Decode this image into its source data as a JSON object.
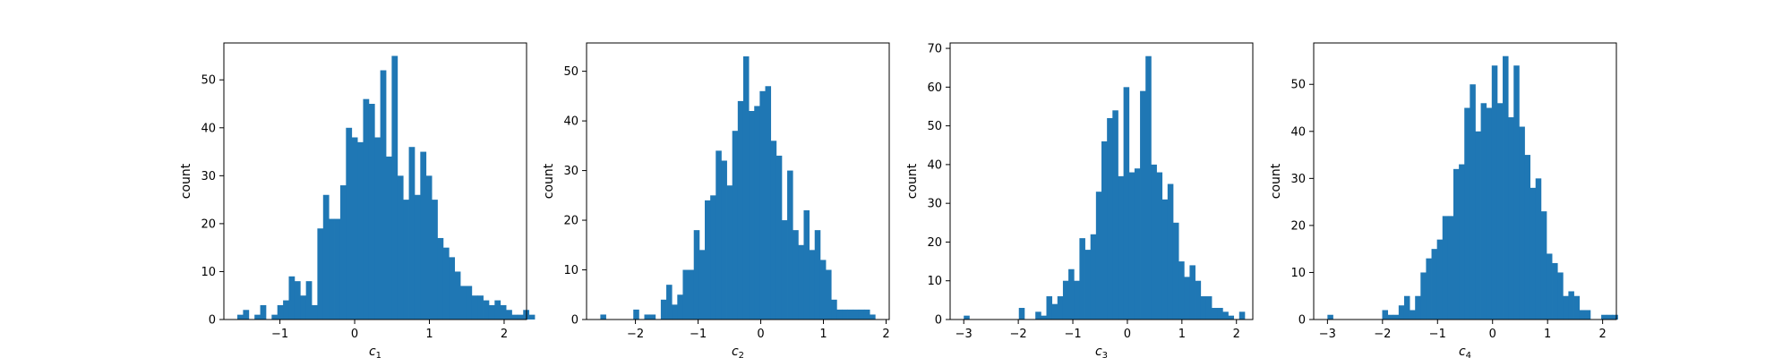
{
  "chart_data": [
    {
      "type": "bar",
      "xlabel": "c",
      "xlabel_sub": "1",
      "ylabel": "count",
      "xlim": [
        -1.75,
        2.3
      ],
      "ylim": [
        0,
        57.7
      ],
      "xticks": [
        -1,
        0,
        1,
        2
      ],
      "xtick_labels": [
        "−1",
        "0",
        "1",
        "2"
      ],
      "yticks": [
        0,
        10,
        20,
        30,
        40,
        50
      ],
      "ytick_labels": [
        "0",
        "10",
        "20",
        "30",
        "40",
        "50"
      ],
      "bin_start": -1.57,
      "bin_width": 0.0765,
      "counts": [
        1,
        2,
        0,
        1,
        3,
        0,
        1,
        3,
        4,
        9,
        8,
        5,
        8,
        3,
        19,
        26,
        21,
        21,
        28,
        40,
        38,
        37,
        46,
        45,
        38,
        52,
        34,
        55,
        30,
        25,
        36,
        26,
        35,
        30,
        25,
        17,
        15,
        13,
        10,
        7,
        7,
        5,
        5,
        4,
        3,
        4,
        3,
        2,
        1,
        1,
        2,
        1
      ]
    },
    {
      "type": "bar",
      "xlabel": "c",
      "xlabel_sub": "2",
      "ylabel": "count",
      "xlim": [
        -2.78,
        2.05
      ],
      "ylim": [
        0,
        55.7
      ],
      "xticks": [
        -2,
        -1,
        0,
        1,
        2
      ],
      "xtick_labels": [
        "−2",
        "−1",
        "0",
        "1",
        "2"
      ],
      "yticks": [
        0,
        10,
        20,
        30,
        40,
        50
      ],
      "ytick_labels": [
        "0",
        "10",
        "20",
        "30",
        "40",
        "50"
      ],
      "bin_start": -2.56,
      "bin_width": 0.0877,
      "counts": [
        1,
        0,
        0,
        0,
        0,
        0,
        2,
        0,
        1,
        1,
        0,
        4,
        7,
        3,
        5,
        10,
        10,
        18,
        14,
        24,
        25,
        34,
        32,
        27,
        38,
        44,
        53,
        42,
        43,
        46,
        47,
        36,
        33,
        20,
        30,
        18,
        15,
        22,
        14,
        18,
        12,
        10,
        4,
        2,
        2,
        2,
        2,
        2,
        2,
        1
      ]
    },
    {
      "type": "bar",
      "xlabel": "c",
      "xlabel_sub": "3",
      "ylabel": "count",
      "xlim": [
        -3.25,
        2.3
      ],
      "ylim": [
        0,
        71.4
      ],
      "xticks": [
        -3,
        -2,
        -1,
        0,
        1,
        2
      ],
      "xtick_labels": [
        "−3",
        "−2",
        "−1",
        "0",
        "1",
        "2"
      ],
      "yticks": [
        0,
        10,
        20,
        30,
        40,
        50,
        60,
        70
      ],
      "ytick_labels": [
        "0",
        "10",
        "20",
        "30",
        "40",
        "50",
        "60",
        "70"
      ],
      "bin_start": -3.0,
      "bin_width": 0.101,
      "counts": [
        1,
        0,
        0,
        0,
        0,
        0,
        0,
        0,
        0,
        0,
        3,
        0,
        0,
        2,
        1,
        6,
        4,
        6,
        10,
        13,
        10,
        21,
        18,
        22,
        33,
        46,
        52,
        54,
        37,
        60,
        38,
        39,
        59,
        68,
        40,
        38,
        31,
        35,
        25,
        15,
        11,
        14,
        10,
        6,
        6,
        3,
        3,
        2,
        1,
        0,
        2
      ]
    },
    {
      "type": "bar",
      "xlabel": "c",
      "xlabel_sub": "4",
      "ylabel": "count",
      "xlim": [
        -3.25,
        2.25
      ],
      "ylim": [
        0,
        58.8
      ],
      "xticks": [
        -3,
        -2,
        -1,
        0,
        1,
        2
      ],
      "xtick_labels": [
        "−3",
        "−2",
        "−1",
        "0",
        "1",
        "2"
      ],
      "yticks": [
        0,
        10,
        20,
        30,
        40,
        50
      ],
      "ytick_labels": [
        "0",
        "10",
        "20",
        "30",
        "40",
        "50"
      ],
      "bin_start": -3.0,
      "bin_width": 0.0995,
      "counts": [
        1,
        0,
        0,
        0,
        0,
        0,
        0,
        0,
        0,
        0,
        2,
        1,
        1,
        3,
        5,
        2,
        5,
        10,
        13,
        15,
        17,
        22,
        22,
        32,
        33,
        45,
        50,
        40,
        46,
        45,
        54,
        46,
        56,
        43,
        54,
        41,
        35,
        28,
        30,
        23,
        14,
        12,
        10,
        5,
        6,
        5,
        2,
        2,
        0,
        0,
        1,
        1,
        1
      ]
    }
  ]
}
